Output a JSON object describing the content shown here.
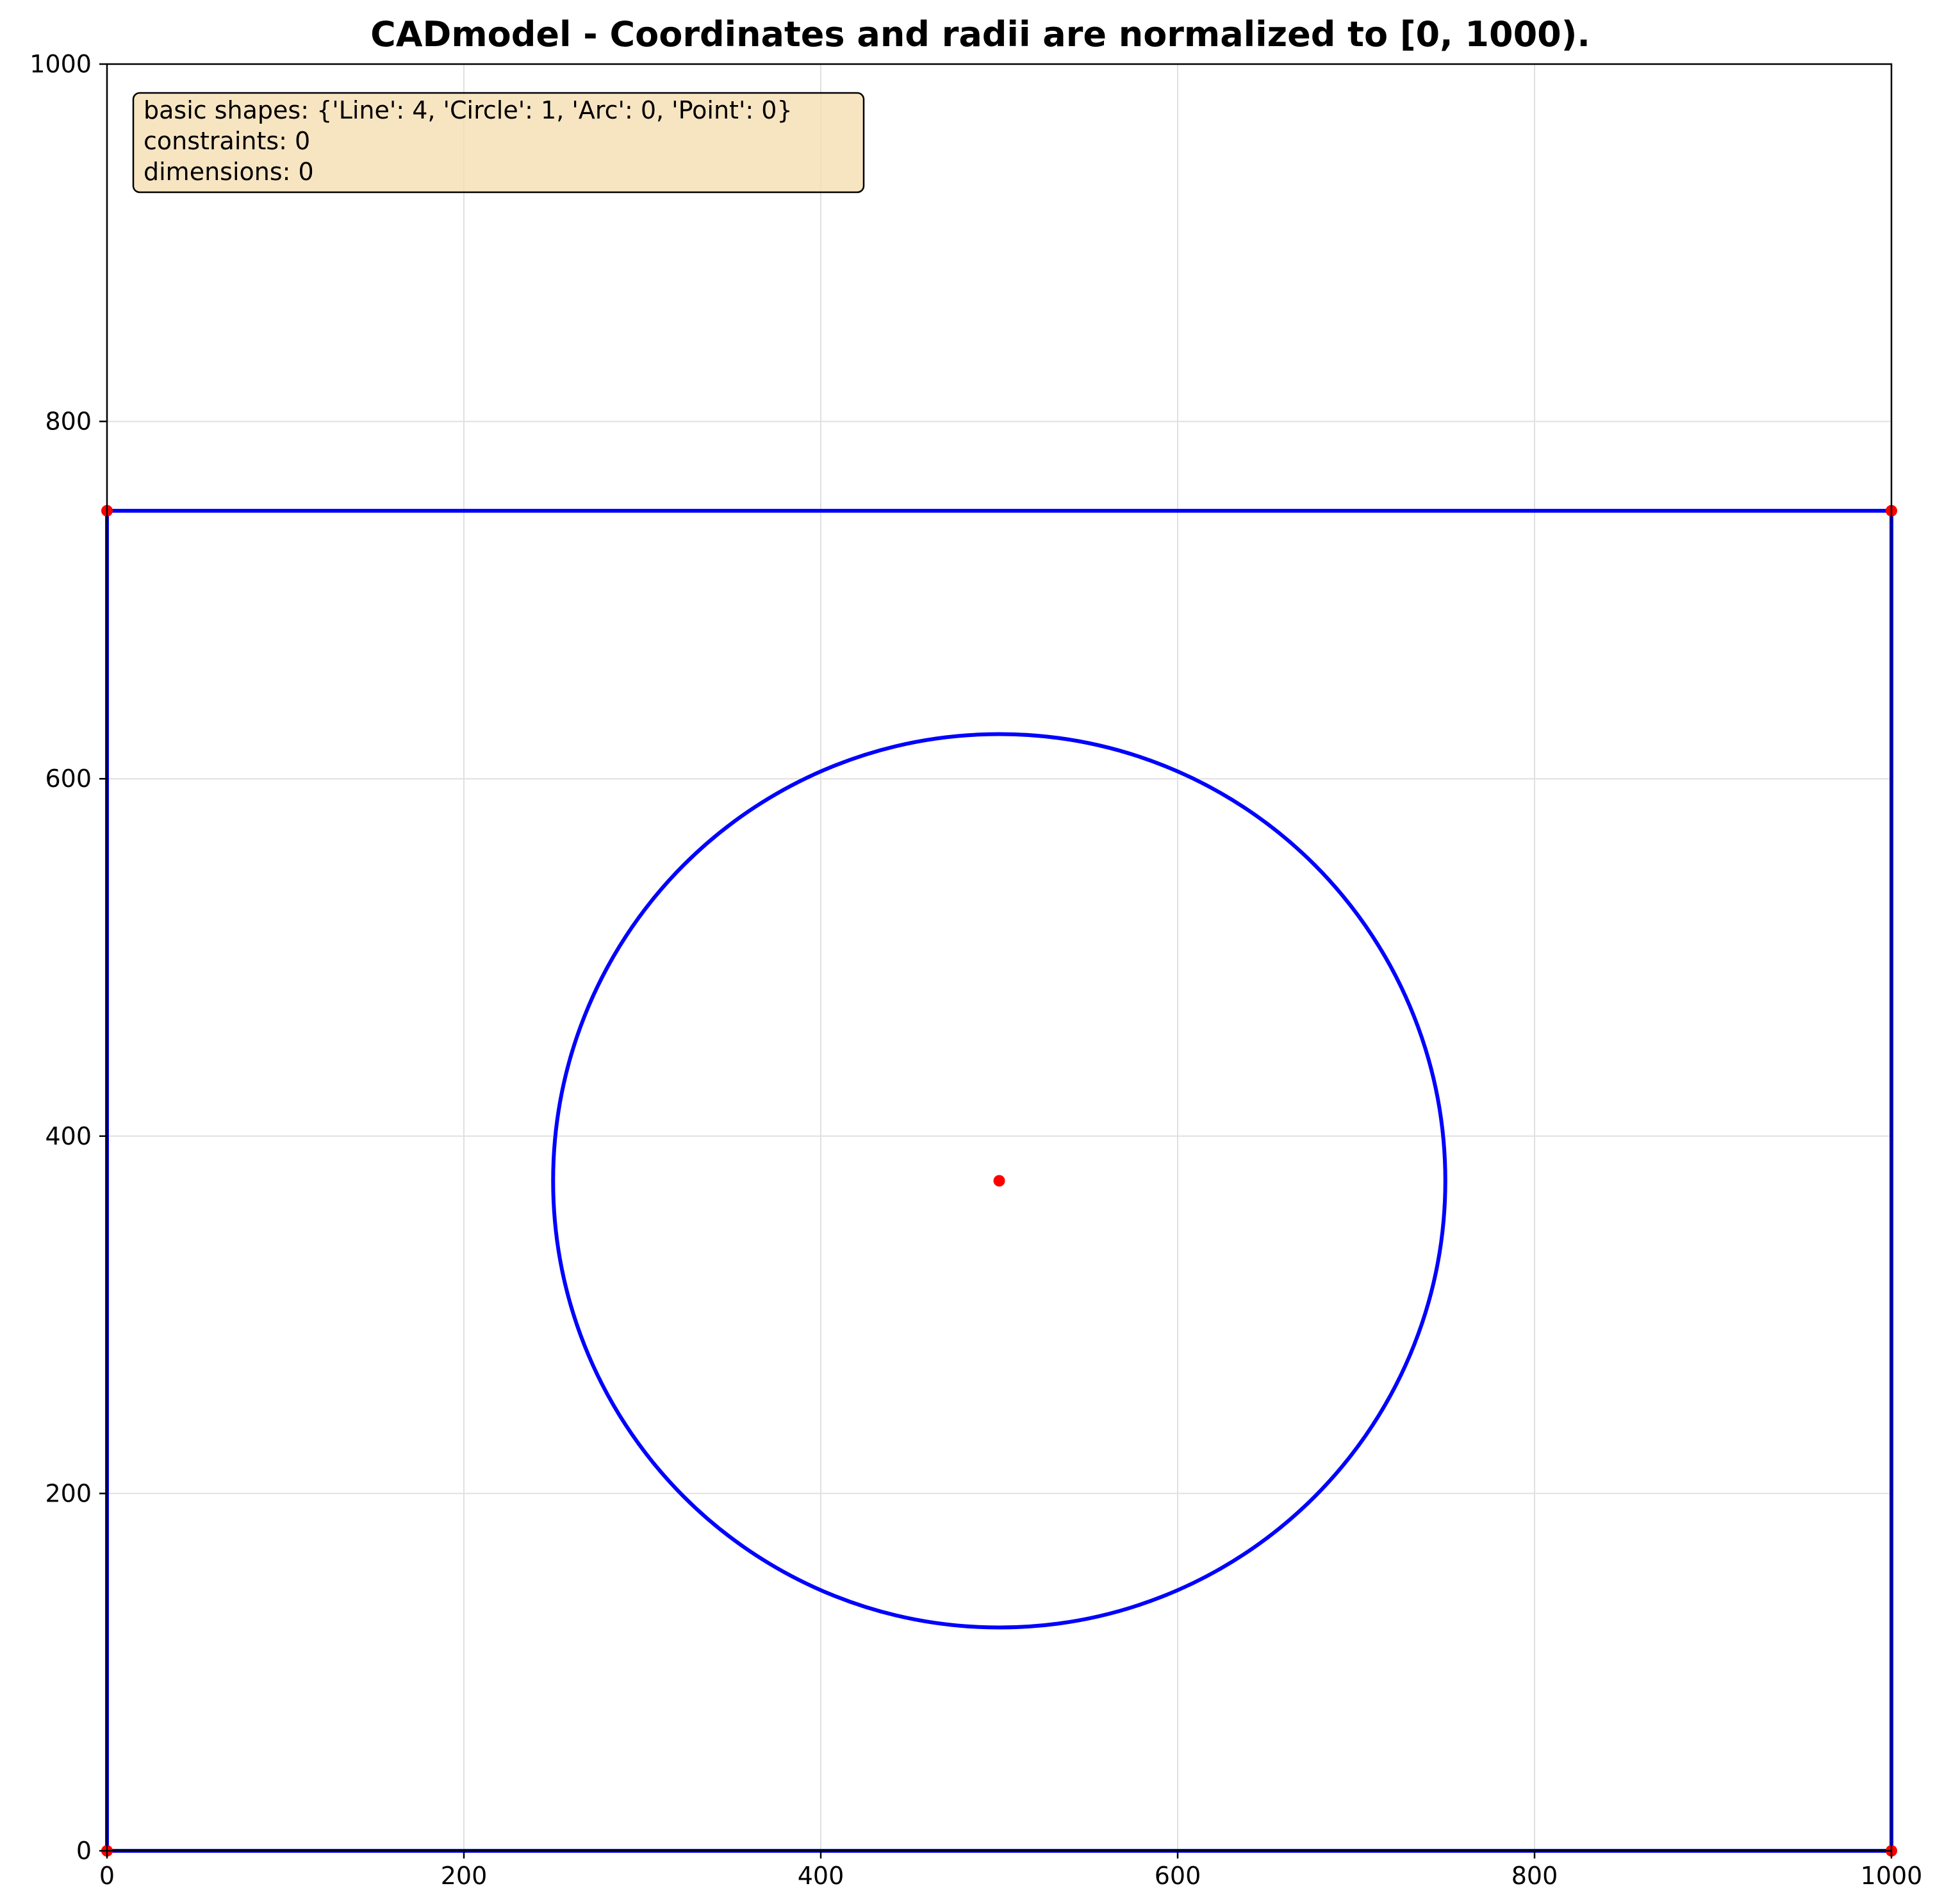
{
  "chart_data": {
    "type": "cad-sketch",
    "title": "CADmodel - Coordinates and radii are normalized to [0, 1000).",
    "xlim": [
      0,
      1000
    ],
    "ylim": [
      0,
      1000
    ],
    "xticks": [
      0,
      200,
      400,
      600,
      800,
      1000
    ],
    "yticks": [
      0,
      200,
      400,
      600,
      800,
      1000
    ],
    "xtick_labels": [
      "0",
      "200",
      "400",
      "600",
      "800",
      "1000"
    ],
    "ytick_labels": [
      "0",
      "200",
      "400",
      "600",
      "800",
      "1000"
    ],
    "grid": true,
    "info_box": {
      "placement": "top-left",
      "lines": [
        "basic shapes: {'Line': 4, 'Circle': 1, 'Arc': 0, 'Point': 0}",
        "constraints: 0",
        "dimensions: 0"
      ]
    },
    "lines": [
      {
        "name": "bottom-edge",
        "start": [
          0,
          0
        ],
        "end": [
          1000,
          0
        ]
      },
      {
        "name": "right-edge",
        "start": [
          1000,
          0
        ],
        "end": [
          1000,
          750
        ]
      },
      {
        "name": "top-edge",
        "start": [
          1000,
          750
        ],
        "end": [
          0,
          750
        ]
      },
      {
        "name": "left-edge",
        "start": [
          0,
          750
        ],
        "end": [
          0,
          0
        ]
      }
    ],
    "circles": [
      {
        "name": "center-circle",
        "center": [
          500,
          375
        ],
        "radius": 250
      }
    ],
    "key_points": [
      [
        0,
        0
      ],
      [
        1000,
        0
      ],
      [
        1000,
        750
      ],
      [
        0,
        750
      ],
      [
        500,
        375
      ]
    ],
    "colors": {
      "geometry": "#0000ff",
      "points": "#ff0000",
      "grid": "#e0e0e0",
      "info_box_fill": "#f5deb3",
      "info_box_edge": "#000000"
    }
  }
}
